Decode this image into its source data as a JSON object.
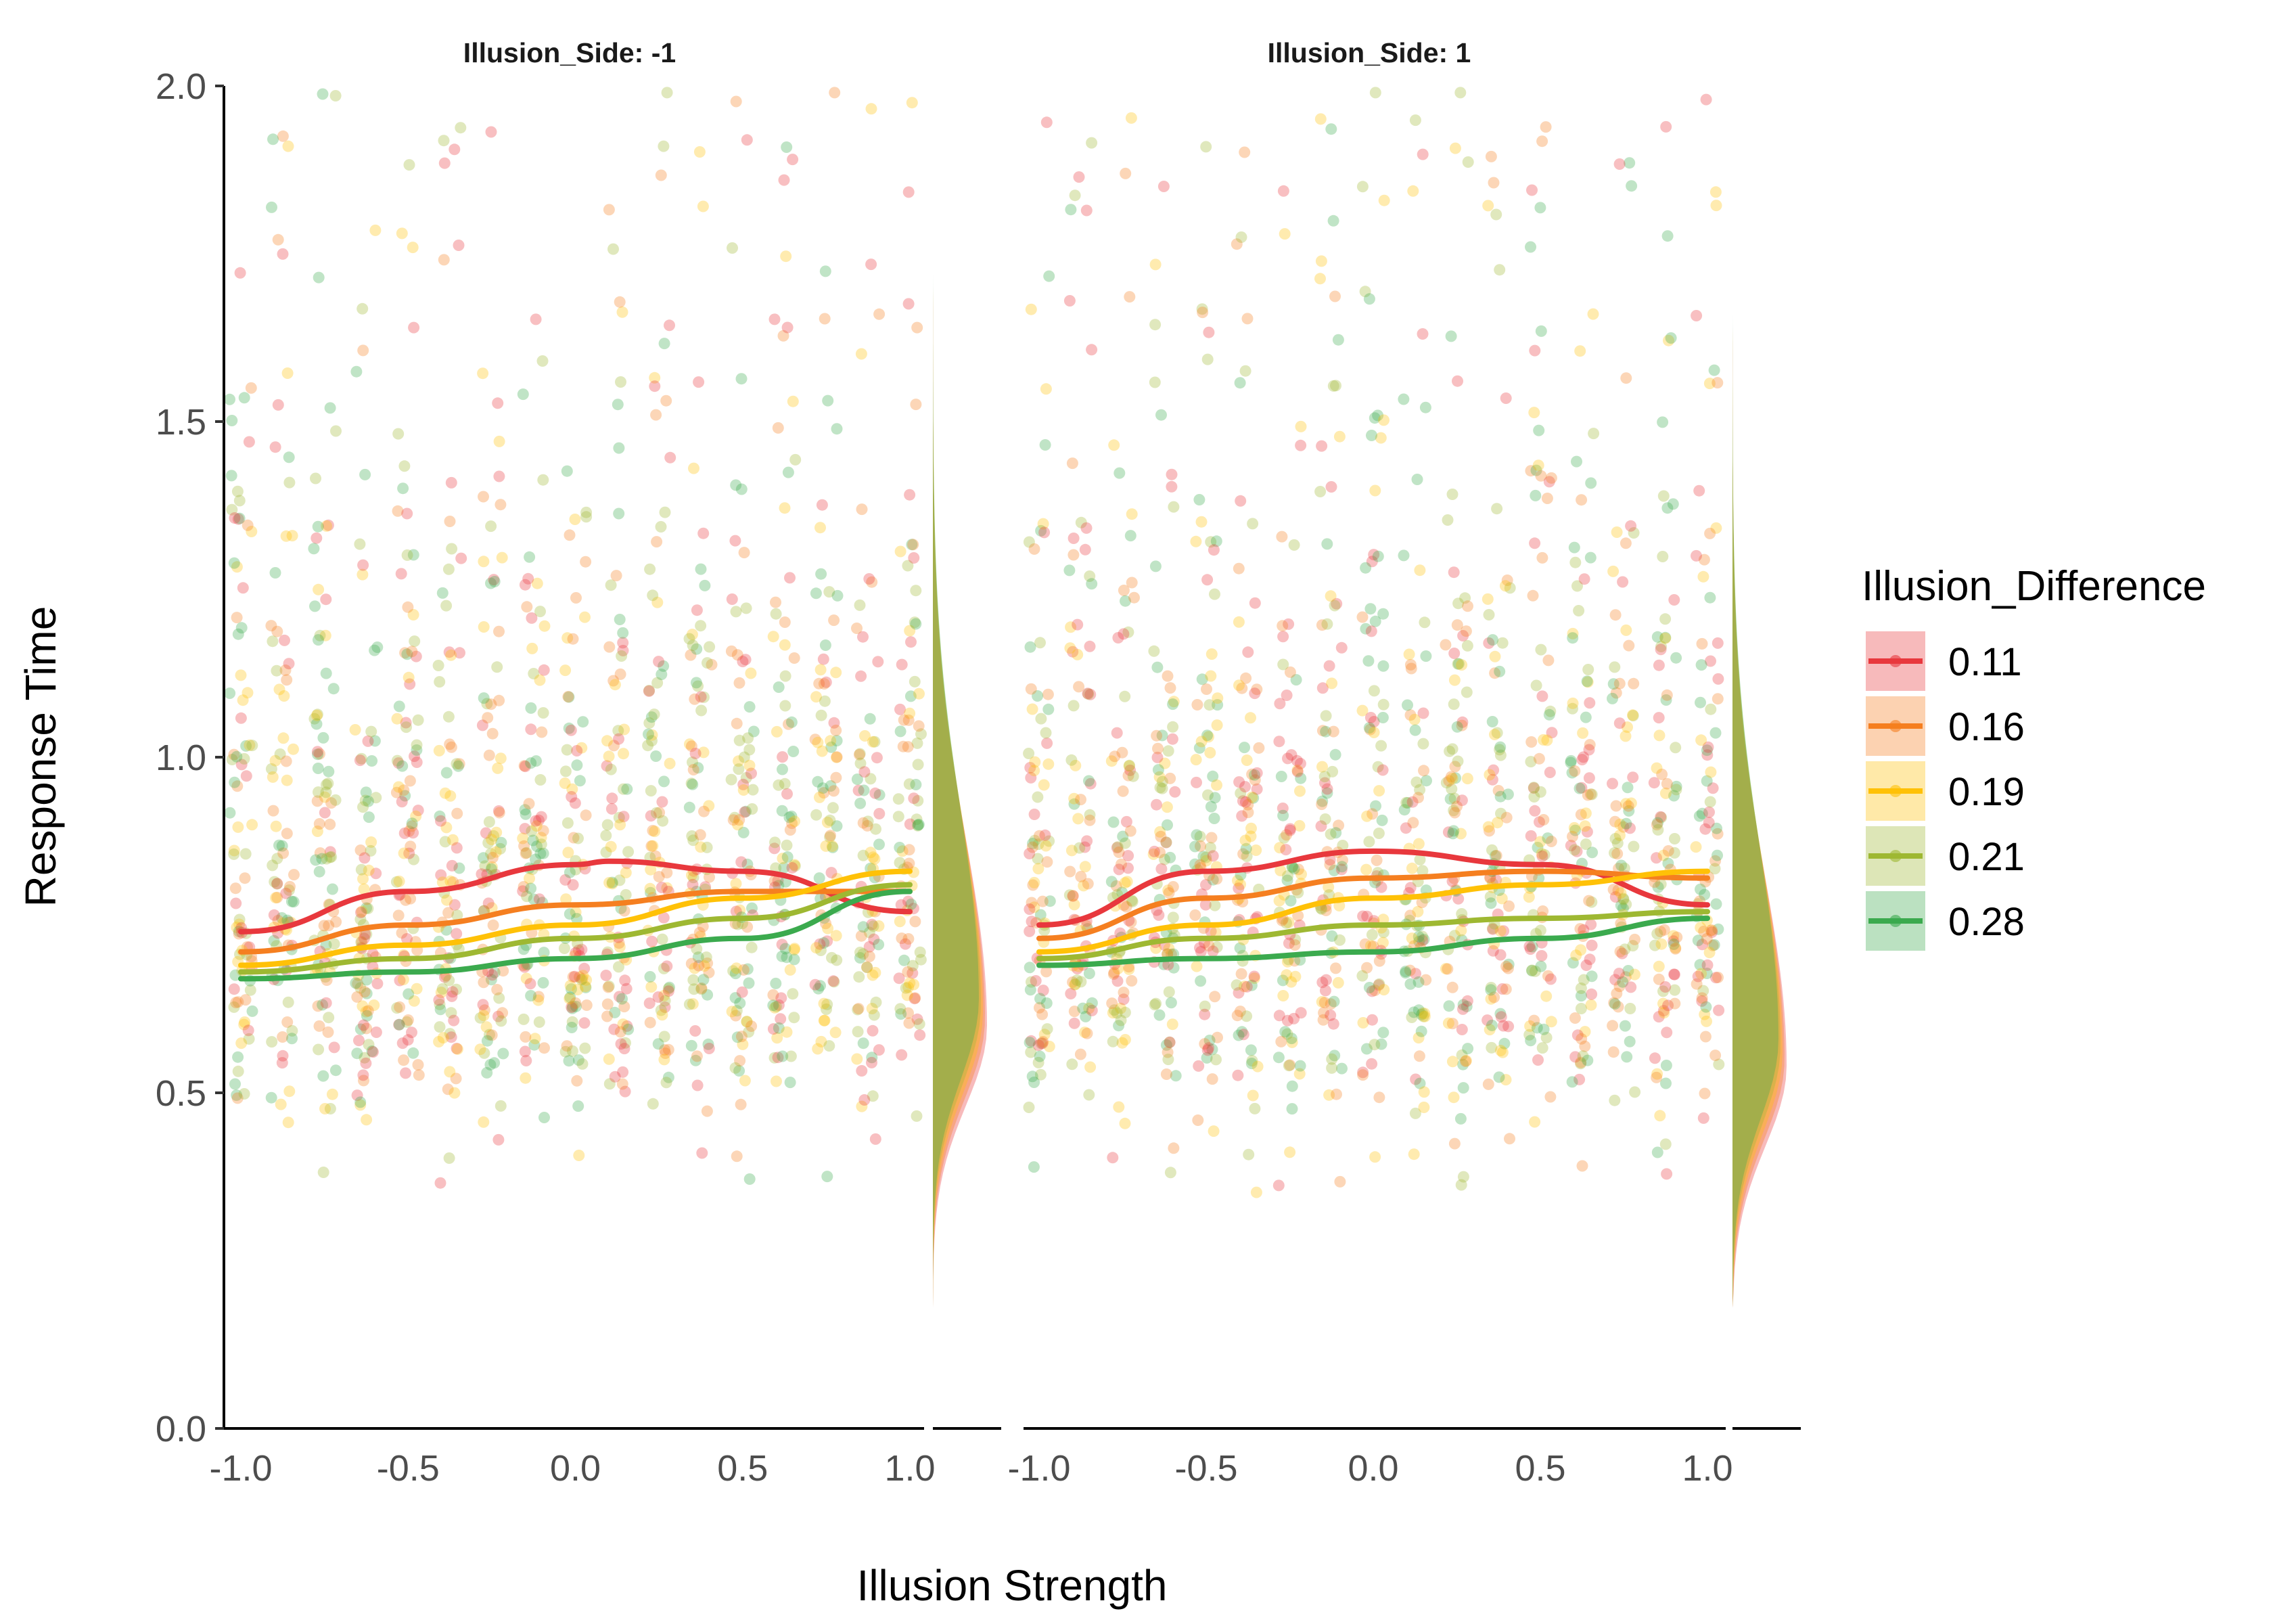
{
  "chart_data": {
    "type": "scatter",
    "title": "",
    "xlabel": "Illusion Strength",
    "ylabel": "Response Time",
    "xlim": [
      -1.0,
      1.0
    ],
    "ylim": [
      0.0,
      2.0
    ],
    "x_ticks": [
      "-1.0",
      "-0.5",
      "0.0",
      "0.5",
      "1.0"
    ],
    "y_ticks": [
      "0.0",
      "0.5",
      "1.0",
      "1.5",
      "2.0"
    ],
    "legend": {
      "title": "Illusion_Difference",
      "position": "right",
      "entries": [
        {
          "label": "0.11",
          "color": "#E8383D"
        },
        {
          "label": "0.16",
          "color": "#F57F20"
        },
        {
          "label": "0.19",
          "color": "#FFC107"
        },
        {
          "label": "0.21",
          "color": "#9EB832"
        },
        {
          "label": "0.28",
          "color": "#3BAA4E"
        }
      ]
    },
    "x_levels": [
      -1.0,
      -0.875,
      -0.75,
      -0.625,
      -0.5,
      -0.375,
      -0.25,
      -0.125,
      0.0,
      0.125,
      0.25,
      0.375,
      0.5,
      0.625,
      0.75,
      0.875,
      1.0
    ],
    "facets": [
      {
        "label": "Illusion_Side: -1",
        "series": [
          {
            "name": "0.11",
            "x": [
              -1.0,
              -0.5,
              0.0,
              0.1,
              0.5,
              1.0
            ],
            "y": [
              0.74,
              0.8,
              0.84,
              0.845,
              0.83,
              0.77
            ]
          },
          {
            "name": "0.16",
            "x": [
              -1.0,
              -0.5,
              0.0,
              0.5,
              1.0
            ],
            "y": [
              0.71,
              0.75,
              0.78,
              0.8,
              0.8
            ]
          },
          {
            "name": "0.19",
            "x": [
              -1.0,
              -0.5,
              0.0,
              0.5,
              1.0
            ],
            "y": [
              0.69,
              0.72,
              0.75,
              0.79,
              0.83
            ]
          },
          {
            "name": "0.21",
            "x": [
              -1.0,
              -0.5,
              0.0,
              0.5,
              1.0
            ],
            "y": [
              0.68,
              0.7,
              0.73,
              0.76,
              0.81
            ]
          },
          {
            "name": "0.28",
            "x": [
              -1.0,
              -0.5,
              0.0,
              0.5,
              1.0
            ],
            "y": [
              0.67,
              0.68,
              0.7,
              0.73,
              0.8
            ]
          }
        ],
        "density_mode": 0.62
      },
      {
        "label": "Illusion_Side: 1",
        "series": [
          {
            "name": "0.11",
            "x": [
              -1.0,
              -0.5,
              0.0,
              0.5,
              1.0
            ],
            "y": [
              0.75,
              0.83,
              0.86,
              0.84,
              0.78
            ]
          },
          {
            "name": "0.16",
            "x": [
              -1.0,
              -0.5,
              0.0,
              0.5,
              1.0
            ],
            "y": [
              0.73,
              0.79,
              0.82,
              0.83,
              0.82
            ]
          },
          {
            "name": "0.19",
            "x": [
              -1.0,
              -0.5,
              0.0,
              0.5,
              1.0
            ],
            "y": [
              0.71,
              0.75,
              0.79,
              0.81,
              0.83
            ]
          },
          {
            "name": "0.21",
            "x": [
              -1.0,
              -0.5,
              0.0,
              0.5,
              1.0
            ],
            "y": [
              0.7,
              0.73,
              0.75,
              0.76,
              0.77
            ]
          },
          {
            "name": "0.28",
            "x": [
              -1.0,
              -0.5,
              0.0,
              0.5,
              1.0
            ],
            "y": [
              0.69,
              0.7,
              0.71,
              0.73,
              0.76
            ]
          }
        ],
        "density_mode": 0.56
      }
    ]
  }
}
